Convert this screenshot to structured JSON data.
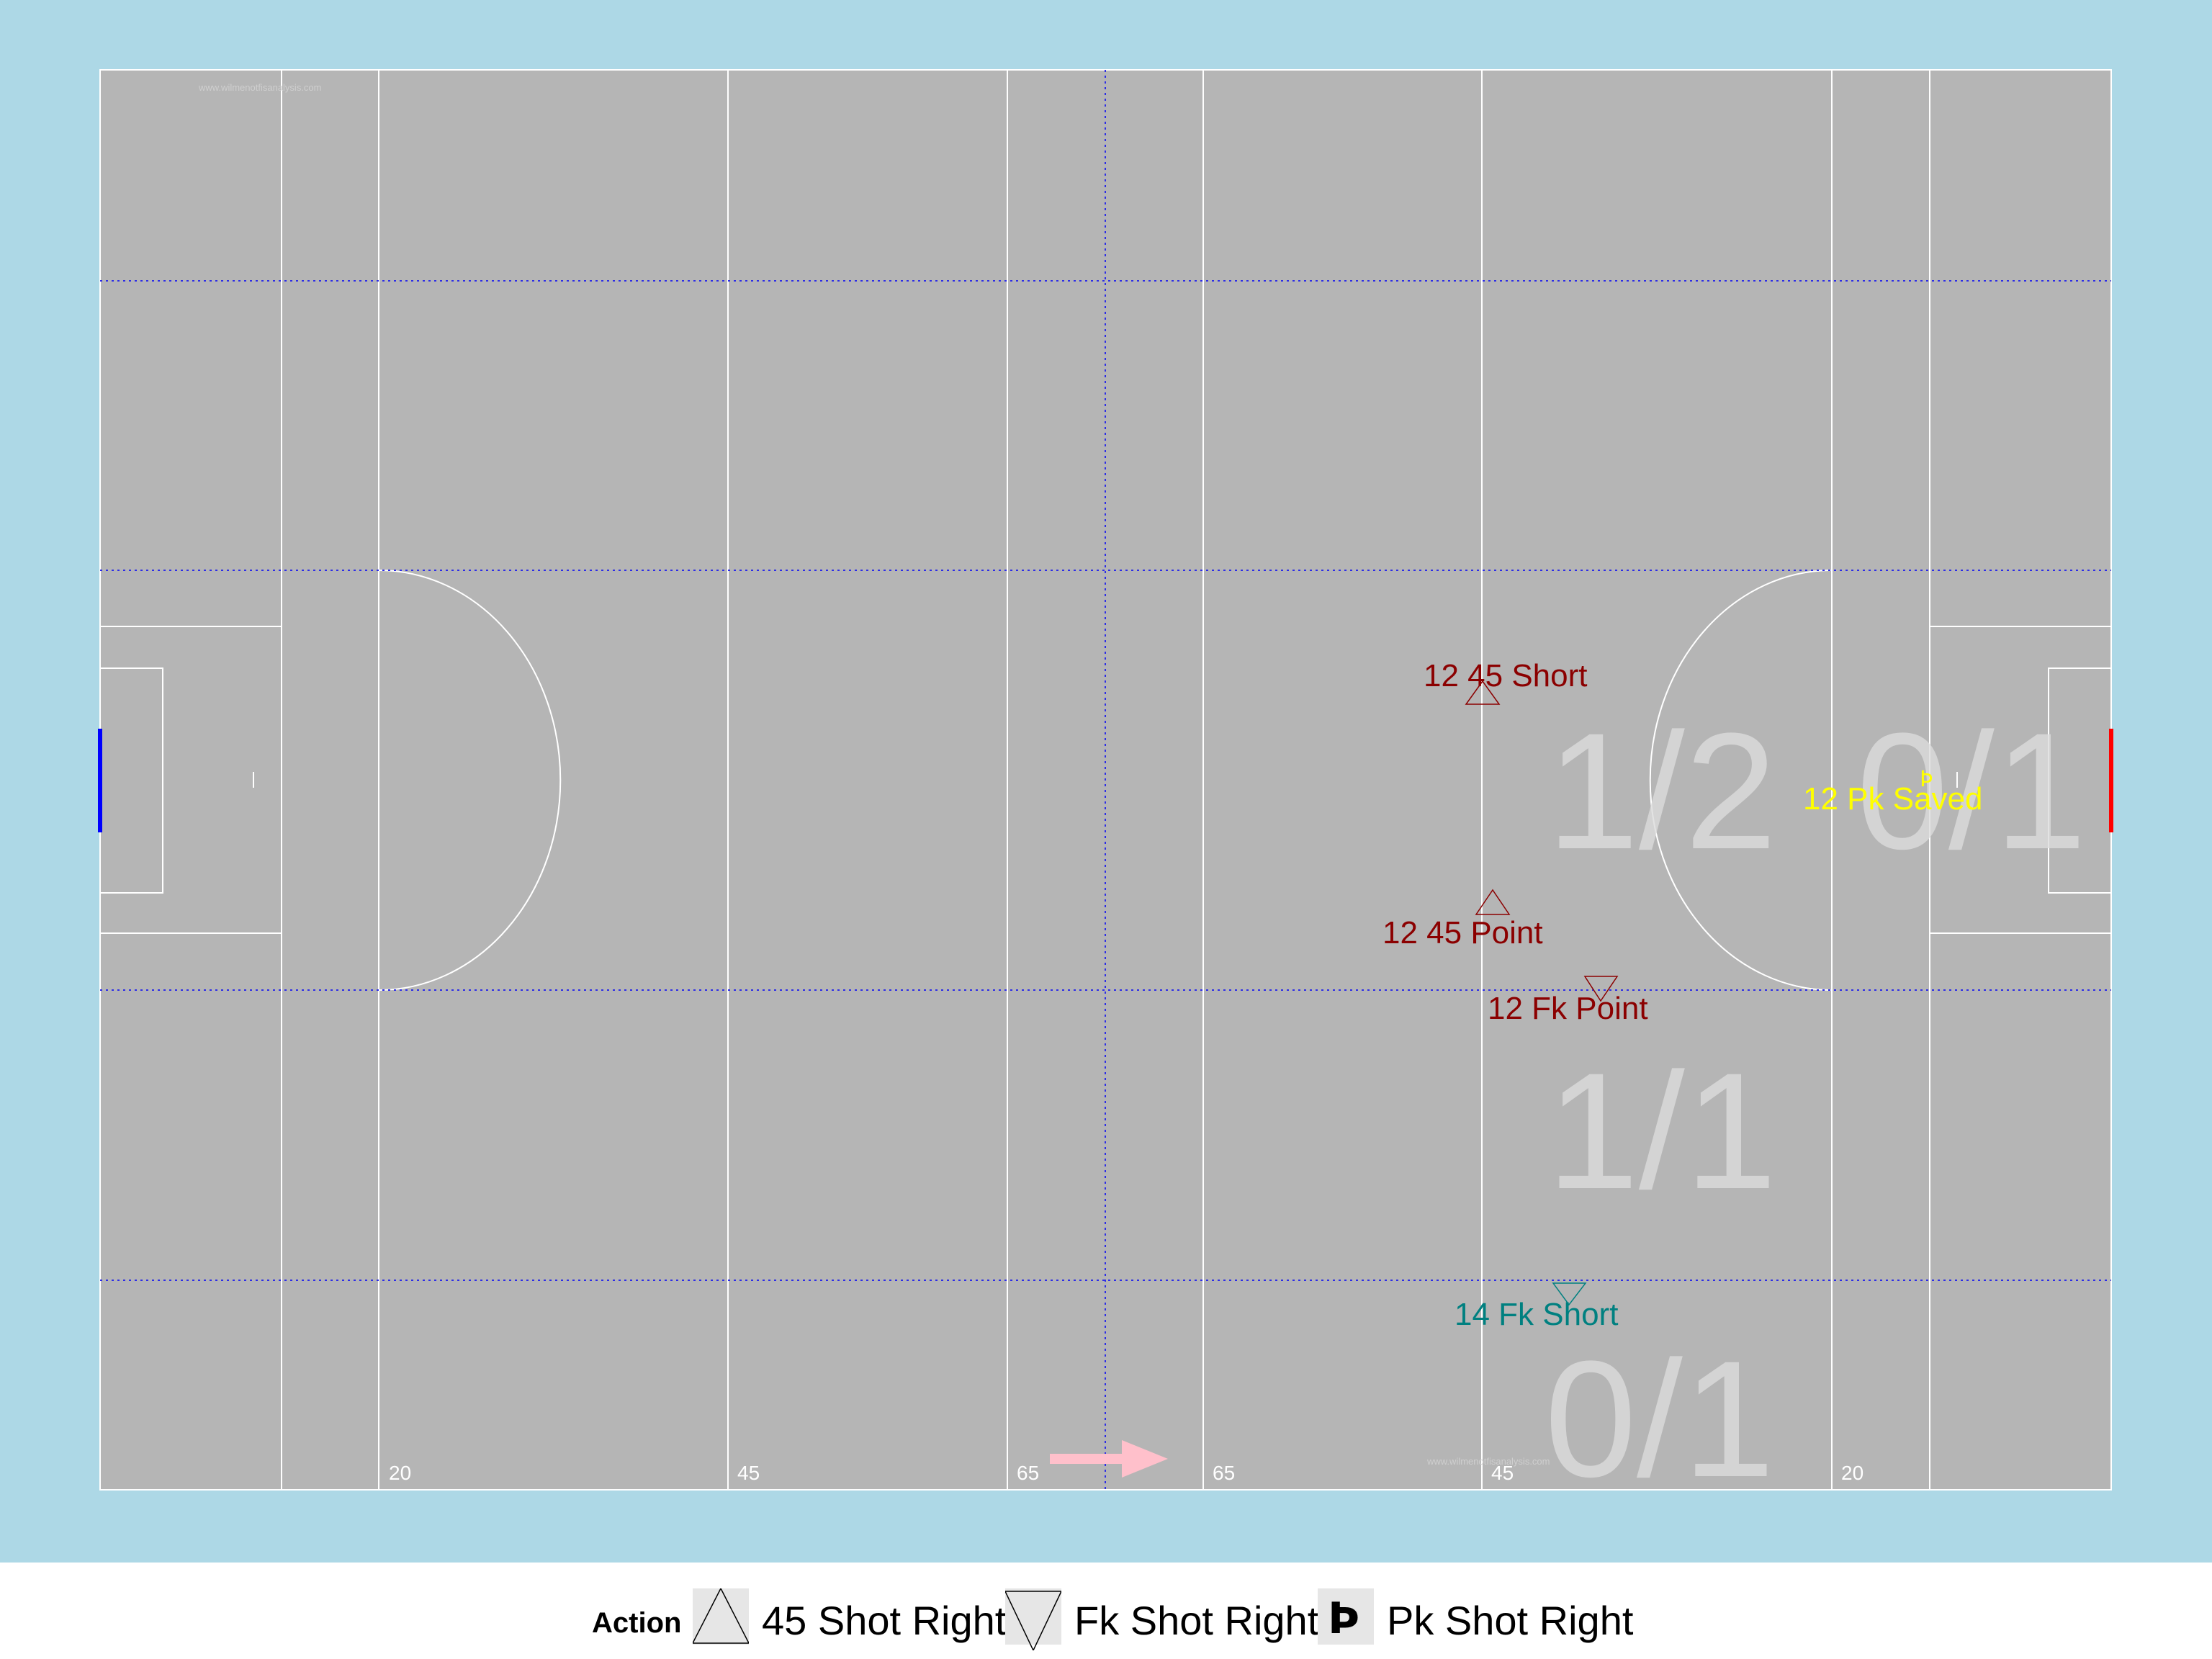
{
  "watermark": "www.wilmenotfisanalysis.com",
  "distance_labels": [
    "20",
    "45",
    "65",
    "65",
    "45",
    "20"
  ],
  "zone_stats": {
    "middle": "1/2",
    "right_top": "0/1",
    "lower_middle": "1/1",
    "bottom": "0/1"
  },
  "events": [
    {
      "label": "12 45 Short",
      "symbol": "45 Shot Right",
      "color": "#8b0000"
    },
    {
      "label": "12 Pk Saved",
      "symbol": "Pk Shot Right",
      "color": "#ffff00"
    },
    {
      "label": "12 45 Point",
      "symbol": "45 Shot Right",
      "color": "#8b0000"
    },
    {
      "label": "12 Fk Point",
      "symbol": "Fk Shot Right",
      "color": "#8b0000"
    },
    {
      "label": "14 Fk Short",
      "symbol": "Fk Shot Right",
      "color": "#008080"
    }
  ],
  "direction_arrow": "arrow-right-icon",
  "legend": {
    "title": "Action",
    "items": [
      {
        "icon": "triangle-up-icon",
        "label": "45 Shot Right"
      },
      {
        "icon": "triangle-down-icon",
        "label": "Fk Shot Right"
      },
      {
        "icon": "thorn-icon",
        "label": "Pk Shot Right"
      }
    ]
  }
}
